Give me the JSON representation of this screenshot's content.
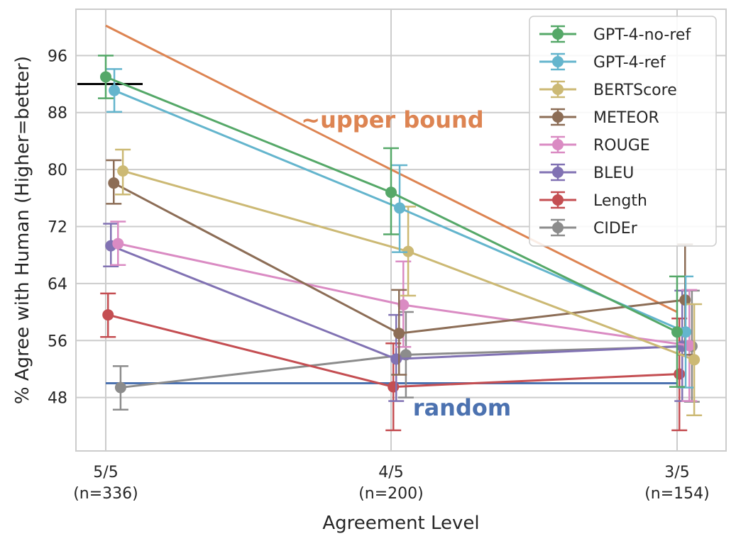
{
  "chart_data": {
    "type": "line",
    "xlabel": "Agreement Level",
    "ylabel": "% Agree with Human (Higher=better)",
    "categories": [
      "5/5\n(n=336)",
      "4/5\n(n=200)",
      "3/5\n(n=154)"
    ],
    "category_lines": [
      [
        "5/5",
        "(n=336)"
      ],
      [
        "4/5",
        "(n=200)"
      ],
      [
        "3/5",
        "(n=154)"
      ]
    ],
    "ylim": [
      40.5,
      102.5
    ],
    "yticks": [
      48,
      56,
      64,
      72,
      80,
      88,
      96
    ],
    "grid": true,
    "legend_position": "top-right",
    "series": [
      {
        "name": "GPT-4-no-ref",
        "color": "#55a868",
        "values": [
          93.0,
          76.8,
          57.2
        ],
        "err_low": [
          90.0,
          70.9,
          49.5
        ],
        "err_high": [
          96.0,
          83.0,
          65.0
        ]
      },
      {
        "name": "GPT-4-ref",
        "color": "#64b5cd",
        "values": [
          91.1,
          74.6,
          57.2
        ],
        "err_low": [
          88.1,
          68.4,
          49.4
        ],
        "err_high": [
          94.1,
          80.6,
          65.0
        ]
      },
      {
        "name": "BERTScore",
        "color": "#ccb974",
        "values": [
          79.8,
          68.5,
          53.3
        ],
        "err_low": [
          76.5,
          62.3,
          45.5
        ],
        "err_high": [
          82.8,
          74.8,
          61.1
        ]
      },
      {
        "name": "METEOR",
        "color": "#8c6d56",
        "values": [
          78.1,
          57.0,
          61.7
        ],
        "err_low": [
          75.2,
          51.2,
          54.0
        ],
        "err_high": [
          81.3,
          63.1,
          69.5
        ]
      },
      {
        "name": "ROUGE",
        "color": "#da8bc3",
        "values": [
          69.6,
          61.0,
          55.3
        ],
        "err_low": [
          66.6,
          55.1,
          47.5
        ],
        "err_high": [
          72.7,
          67.1,
          63.1
        ]
      },
      {
        "name": "BLEU",
        "color": "#8172b3",
        "values": [
          69.3,
          53.4,
          55.2
        ],
        "err_low": [
          66.4,
          47.5,
          47.5
        ],
        "err_high": [
          72.4,
          59.6,
          63.0
        ]
      },
      {
        "name": "Length",
        "color": "#c44e52",
        "values": [
          59.6,
          49.5,
          51.3
        ],
        "err_low": [
          56.5,
          43.4,
          43.4
        ],
        "err_high": [
          62.6,
          55.6,
          59.1
        ]
      },
      {
        "name": "CIDEr",
        "color": "#8c8c8c",
        "values": [
          49.4,
          54.0,
          55.2
        ],
        "err_low": [
          46.3,
          48.0,
          47.4
        ],
        "err_high": [
          52.4,
          60.0,
          63.0
        ]
      }
    ],
    "series_x_offsets": [
      0,
      0.03,
      0.06,
      0.028,
      0.043,
      0.018,
      0.008,
      0.052
    ],
    "reference_lines": [
      {
        "label": "~upper bound",
        "color": "#dd8452",
        "values": [
          100.2,
          80.0,
          60.0
        ]
      },
      {
        "label": "random",
        "color": "#4c72b0",
        "values": [
          50.0,
          50.0,
          50.0
        ]
      }
    ],
    "human_marker": {
      "color": "#000000",
      "value": 92.0
    }
  }
}
